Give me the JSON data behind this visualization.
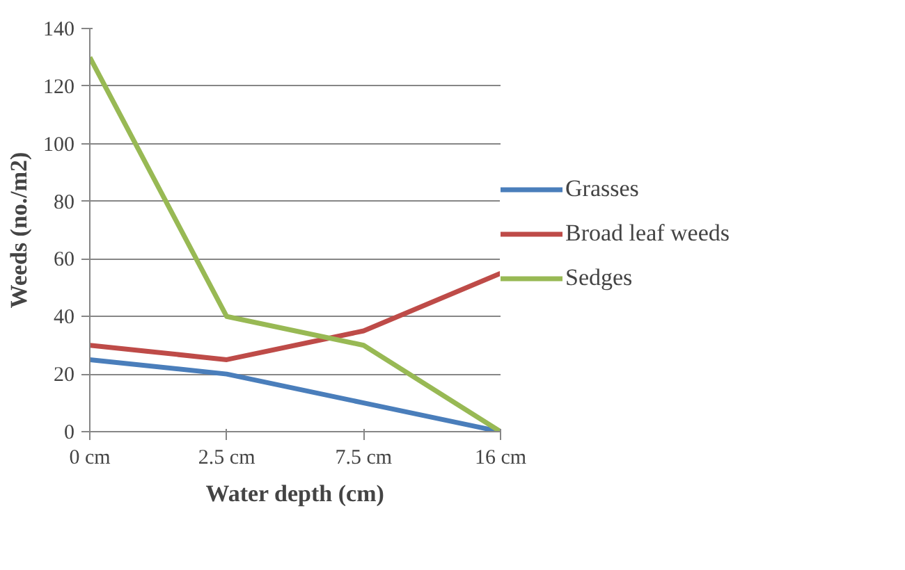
{
  "chart_data": {
    "type": "line",
    "xlabel": "Water depth (cm)",
    "ylabel": "Weeds (no./m2)",
    "categories": [
      "0 cm",
      "2.5 cm",
      "7.5 cm",
      "16 cm"
    ],
    "series": [
      {
        "name": "Grasses",
        "color": "#4a7ebb",
        "values": [
          25,
          20,
          10,
          0
        ]
      },
      {
        "name": "Broad leaf weeds",
        "color": "#be4b48",
        "values": [
          30,
          25,
          35,
          55
        ]
      },
      {
        "name": "Sedges",
        "color": "#98b954",
        "values": [
          130,
          40,
          30,
          0
        ]
      }
    ],
    "ylim": [
      0,
      140
    ],
    "yticks": [
      0,
      20,
      40,
      60,
      80,
      100,
      120,
      140
    ],
    "grid": "y",
    "legend": "right",
    "line_style": "solid",
    "marker": "none"
  }
}
